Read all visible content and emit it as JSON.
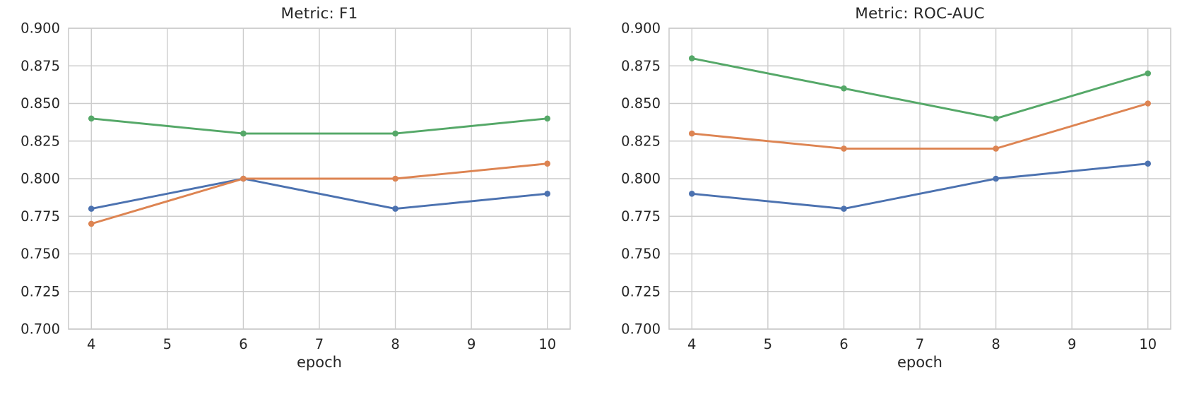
{
  "page": {
    "background_color": "#ffffff",
    "text_color": "#262626",
    "grid_color": "#cccccc",
    "spine_color": "#cccccc"
  },
  "chart_data": [
    {
      "type": "line",
      "title": "Metric: F1",
      "xlabel": "epoch",
      "ylabel": "",
      "x": [
        4,
        6,
        8,
        10
      ],
      "xlim": [
        3.7,
        10.3
      ],
      "ylim": [
        0.7,
        0.9
      ],
      "xticks": [
        4,
        5,
        6,
        7,
        8,
        9,
        10
      ],
      "yticks": [
        0.7,
        0.725,
        0.75,
        0.775,
        0.8,
        0.825,
        0.85,
        0.875,
        0.9
      ],
      "grid": true,
      "legend": "none",
      "markers": "circle",
      "series": [
        {
          "name": "blue-series",
          "color": "#4C72B0",
          "values": [
            0.78,
            0.8,
            0.78,
            0.79
          ]
        },
        {
          "name": "orange-series",
          "color": "#DD8452",
          "values": [
            0.77,
            0.8,
            0.8,
            0.81
          ]
        },
        {
          "name": "green-series",
          "color": "#55A868",
          "values": [
            0.84,
            0.83,
            0.83,
            0.84
          ]
        }
      ]
    },
    {
      "type": "line",
      "title": "Metric: ROC-AUC",
      "xlabel": "epoch",
      "ylabel": "",
      "x": [
        4,
        6,
        8,
        10
      ],
      "xlim": [
        3.7,
        10.3
      ],
      "ylim": [
        0.7,
        0.9
      ],
      "xticks": [
        4,
        5,
        6,
        7,
        8,
        9,
        10
      ],
      "yticks": [
        0.7,
        0.725,
        0.75,
        0.775,
        0.8,
        0.825,
        0.85,
        0.875,
        0.9
      ],
      "grid": true,
      "legend": "none",
      "markers": "circle",
      "series": [
        {
          "name": "blue-series",
          "color": "#4C72B0",
          "values": [
            0.79,
            0.78,
            0.8,
            0.81
          ]
        },
        {
          "name": "orange-series",
          "color": "#DD8452",
          "values": [
            0.83,
            0.82,
            0.82,
            0.85
          ]
        },
        {
          "name": "green-series",
          "color": "#55A868",
          "values": [
            0.88,
            0.86,
            0.84,
            0.87
          ]
        }
      ]
    }
  ]
}
